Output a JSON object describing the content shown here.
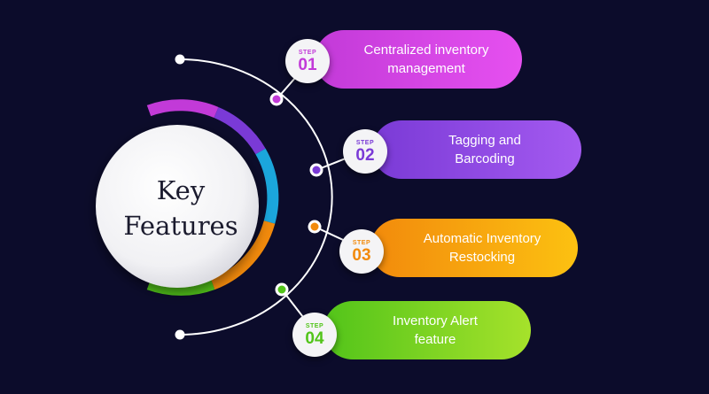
{
  "title": {
    "line1": "Key",
    "line2": "Features"
  },
  "steps": [
    {
      "step_label": "STEP",
      "number": "01",
      "line1": "Centralized inventory",
      "line2": "management",
      "color": "#c23ad8",
      "color_light": "#e650f0"
    },
    {
      "step_label": "STEP",
      "number": "02",
      "line1": "Tagging and",
      "line2": "Barcoding",
      "color": "#7a3ad6",
      "color_light": "#a45af0"
    },
    {
      "step_label": "STEP",
      "number": "03",
      "line1": "Automatic Inventory",
      "line2": "Restocking",
      "color": "#f28a0c",
      "color_light": "#fcc111"
    },
    {
      "step_label": "STEP",
      "number": "04",
      "line1": "Inventory Alert",
      "line2": "feature",
      "color": "#52c41a",
      "color_light": "#a6e22b"
    }
  ],
  "colors": {
    "background": "#0c0c2b",
    "ring_blue": "#1ba6dc",
    "connector": "#ffffff"
  }
}
